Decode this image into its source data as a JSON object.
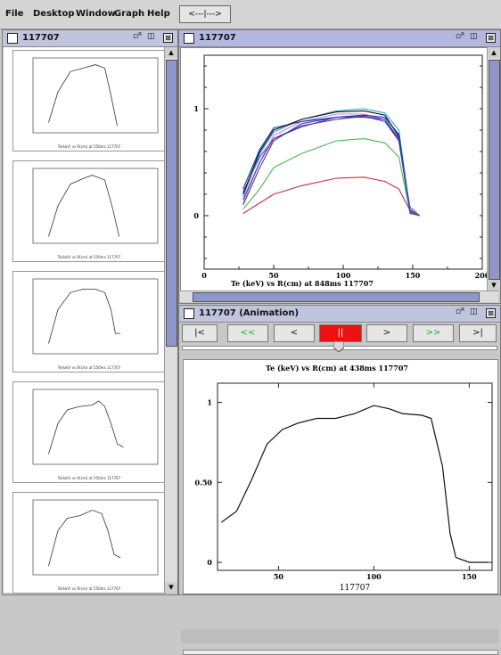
{
  "menu": {
    "items": [
      "File",
      "Desktop",
      "Window",
      "Graph",
      "Help"
    ],
    "slider_label": "<---|--->"
  },
  "left_window": {
    "title": "117707",
    "controls": {
      "restore": "▫ᴿ",
      "max": "◫",
      "close": "⊠"
    },
    "thumbnails": [
      {
        "caption": "Te(keV) vs R(cm) at 550ms 117707"
      },
      {
        "caption": "Te(keV) vs R(cm) at 550ms 117707"
      },
      {
        "caption": "Te(keV) vs R(cm) at 550ms 117707"
      },
      {
        "caption": "Te(keV) vs R(cm) at 550ms 117707"
      },
      {
        "caption": "Te(keV) vs R(cm) at 550ms 117707"
      }
    ]
  },
  "main_window": {
    "title": "117707",
    "controls": {
      "restore": "▫ᴿ",
      "max": "◫",
      "close": "⊠"
    },
    "caption": "Te (keV) vs R(cm) at 848ms 117707"
  },
  "anim_window": {
    "title": "117707 (Animation)",
    "controls": {
      "restore": "▫ᴿ",
      "max": "◫",
      "close": "⊠"
    },
    "buttons": {
      "first": "|<",
      "rewind": "<<",
      "step_back": "<",
      "pause": "||",
      "step_fwd": ">",
      "fast_fwd": ">>",
      "last": ">|"
    },
    "caption": "Te (keV) vs R(cm) at 438ms 117707",
    "footer": "117707",
    "slider_position": 0.5
  },
  "chart_data": [
    {
      "type": "line",
      "title": "Te (keV) vs R(cm) at 848ms 117707",
      "xlim": [
        0,
        200
      ],
      "ylim": [
        -0.5,
        1.5
      ],
      "x_ticks": [
        0,
        50,
        100,
        150,
        200
      ],
      "y_ticks": [
        0,
        1
      ],
      "colors": [
        "#1f4fd8",
        "#d080d0",
        "#22aadd",
        "#2233aa",
        "#101010",
        "#7a2a8a",
        "#44bb44",
        "#c03040",
        "#3344cc"
      ],
      "series": [
        {
          "values": [
            [
              28,
              0.22
            ],
            [
              40,
              0.55
            ],
            [
              50,
              0.72
            ],
            [
              70,
              0.83
            ],
            [
              95,
              0.92
            ],
            [
              115,
              0.93
            ],
            [
              130,
              0.88
            ],
            [
              140,
              0.7
            ],
            [
              148,
              0.08
            ],
            [
              155,
              0.0
            ]
          ]
        },
        {
          "values": [
            [
              28,
              0.12
            ],
            [
              40,
              0.5
            ],
            [
              50,
              0.75
            ],
            [
              70,
              0.88
            ],
            [
              95,
              0.95
            ],
            [
              115,
              0.95
            ],
            [
              130,
              0.9
            ],
            [
              140,
              0.72
            ],
            [
              148,
              0.06
            ],
            [
              155,
              0.0
            ]
          ]
        },
        {
          "values": [
            [
              28,
              0.18
            ],
            [
              40,
              0.58
            ],
            [
              50,
              0.78
            ],
            [
              70,
              0.9
            ],
            [
              95,
              0.98
            ],
            [
              115,
              1.0
            ],
            [
              130,
              0.96
            ],
            [
              140,
              0.8
            ],
            [
              148,
              0.05
            ],
            [
              155,
              0.0
            ]
          ]
        },
        {
          "values": [
            [
              28,
              0.25
            ],
            [
              40,
              0.62
            ],
            [
              50,
              0.82
            ],
            [
              70,
              0.88
            ],
            [
              95,
              0.92
            ],
            [
              115,
              0.94
            ],
            [
              130,
              0.92
            ],
            [
              140,
              0.76
            ],
            [
              148,
              0.02
            ],
            [
              155,
              0.0
            ]
          ]
        },
        {
          "values": [
            [
              28,
              0.2
            ],
            [
              40,
              0.6
            ],
            [
              50,
              0.8
            ],
            [
              70,
              0.9
            ],
            [
              95,
              0.97
            ],
            [
              115,
              0.98
            ],
            [
              130,
              0.94
            ],
            [
              140,
              0.74
            ],
            [
              148,
              0.04
            ],
            [
              155,
              0.0
            ]
          ]
        },
        {
          "values": [
            [
              28,
              0.15
            ],
            [
              40,
              0.5
            ],
            [
              50,
              0.72
            ],
            [
              70,
              0.84
            ],
            [
              95,
              0.9
            ],
            [
              115,
              0.93
            ],
            [
              130,
              0.9
            ],
            [
              140,
              0.7
            ],
            [
              148,
              0.03
            ],
            [
              155,
              0.0
            ]
          ]
        },
        {
          "values": [
            [
              28,
              0.06
            ],
            [
              40,
              0.25
            ],
            [
              50,
              0.45
            ],
            [
              70,
              0.58
            ],
            [
              95,
              0.7
            ],
            [
              115,
              0.72
            ],
            [
              130,
              0.68
            ],
            [
              140,
              0.55
            ],
            [
              148,
              0.03
            ],
            [
              155,
              0.0
            ]
          ]
        },
        {
          "values": [
            [
              28,
              0.02
            ],
            [
              40,
              0.12
            ],
            [
              50,
              0.2
            ],
            [
              70,
              0.28
            ],
            [
              95,
              0.35
            ],
            [
              115,
              0.36
            ],
            [
              130,
              0.32
            ],
            [
              140,
              0.25
            ],
            [
              148,
              0.05
            ],
            [
              155,
              0.0
            ]
          ]
        },
        {
          "values": [
            [
              28,
              0.1
            ],
            [
              40,
              0.45
            ],
            [
              50,
              0.7
            ],
            [
              70,
              0.86
            ],
            [
              95,
              0.92
            ],
            [
              115,
              0.92
            ],
            [
              130,
              0.9
            ],
            [
              140,
              0.72
            ],
            [
              148,
              0.04
            ],
            [
              155,
              0.0
            ]
          ]
        }
      ]
    },
    {
      "type": "line",
      "title": "Te (keV) vs R(cm) at 438ms 117707",
      "xlabel": "117707",
      "xlim": [
        18,
        162
      ],
      "ylim": [
        -0.05,
        1.12
      ],
      "x_ticks": [
        50,
        100,
        150
      ],
      "y_ticks": [
        0,
        0.5,
        1
      ],
      "y_tick_labels": [
        "0",
        "0.50",
        "1"
      ],
      "color": "#111111",
      "series": [
        {
          "values": [
            [
              20,
              0.25
            ],
            [
              28,
              0.32
            ],
            [
              36,
              0.52
            ],
            [
              44,
              0.74
            ],
            [
              52,
              0.83
            ],
            [
              60,
              0.87
            ],
            [
              70,
              0.9
            ],
            [
              80,
              0.9
            ],
            [
              90,
              0.93
            ],
            [
              100,
              0.98
            ],
            [
              108,
              0.96
            ],
            [
              115,
              0.93
            ],
            [
              125,
              0.92
            ],
            [
              130,
              0.9
            ],
            [
              136,
              0.6
            ],
            [
              140,
              0.18
            ],
            [
              143,
              0.03
            ],
            [
              150,
              0.0
            ],
            [
              160,
              0.0
            ]
          ]
        }
      ]
    },
    {
      "type": "line",
      "title": "Te(keV) vs R(cm) at 550ms 117707",
      "note": "thumbnail 1",
      "series": [
        {
          "values": [
            [
              25,
              0.1
            ],
            [
              40,
              0.55
            ],
            [
              60,
              0.85
            ],
            [
              80,
              0.9
            ],
            [
              100,
              0.95
            ],
            [
              115,
              0.9
            ],
            [
              125,
              0.5
            ],
            [
              135,
              0.05
            ]
          ]
        }
      ]
    },
    {
      "type": "line",
      "title": "Te(keV) vs R(cm) at 550ms 117707",
      "note": "thumbnail 2",
      "series": [
        {
          "values": [
            [
              25,
              0.05
            ],
            [
              40,
              0.5
            ],
            [
              60,
              0.82
            ],
            [
              80,
              0.9
            ],
            [
              95,
              0.95
            ],
            [
              115,
              0.88
            ],
            [
              128,
              0.45
            ],
            [
              138,
              0.05
            ]
          ]
        }
      ]
    },
    {
      "type": "line",
      "title": "Te(keV) vs R(cm) at 550ms 117707",
      "note": "thumbnail 3",
      "series": [
        {
          "values": [
            [
              25,
              0.1
            ],
            [
              40,
              0.6
            ],
            [
              60,
              0.85
            ],
            [
              80,
              0.9
            ],
            [
              100,
              0.9
            ],
            [
              115,
              0.85
            ],
            [
              125,
              0.6
            ],
            [
              132,
              0.25
            ],
            [
              140,
              0.25
            ]
          ]
        }
      ]
    },
    {
      "type": "line",
      "title": "Te(keV) vs R(cm) at 550ms 117707",
      "note": "thumbnail 4",
      "series": [
        {
          "values": [
            [
              25,
              0.1
            ],
            [
              40,
              0.55
            ],
            [
              55,
              0.75
            ],
            [
              75,
              0.8
            ],
            [
              95,
              0.82
            ],
            [
              105,
              0.88
            ],
            [
              115,
              0.8
            ],
            [
              125,
              0.55
            ],
            [
              135,
              0.25
            ],
            [
              145,
              0.2
            ]
          ]
        }
      ]
    },
    {
      "type": "line",
      "title": "Te(keV) vs R(cm) at 550ms 117707",
      "note": "thumbnail 5",
      "series": [
        {
          "values": [
            [
              25,
              0.08
            ],
            [
              40,
              0.6
            ],
            [
              55,
              0.78
            ],
            [
              75,
              0.82
            ],
            [
              95,
              0.9
            ],
            [
              110,
              0.85
            ],
            [
              120,
              0.6
            ],
            [
              130,
              0.25
            ],
            [
              140,
              0.2
            ]
          ]
        }
      ]
    }
  ]
}
